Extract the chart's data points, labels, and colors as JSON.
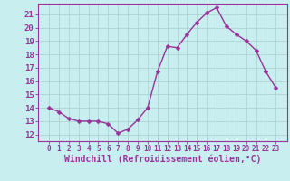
{
  "x": [
    0,
    1,
    2,
    3,
    4,
    5,
    6,
    7,
    8,
    9,
    10,
    11,
    12,
    13,
    14,
    15,
    16,
    17,
    18,
    19,
    20,
    21,
    22,
    23
  ],
  "y": [
    14.0,
    13.7,
    13.2,
    13.0,
    13.0,
    13.0,
    12.8,
    12.1,
    12.4,
    13.1,
    14.0,
    16.7,
    18.6,
    18.5,
    19.5,
    20.4,
    21.1,
    21.5,
    20.1,
    19.5,
    19.0,
    18.3,
    16.7,
    15.5
  ],
  "line_color": "#993399",
  "marker": "D",
  "markersize": 2.5,
  "linewidth": 1.0,
  "bg_color": "#c8eef0",
  "grid_color": "#aacccc",
  "xlabel": "Windchill (Refroidissement éolien,°C)",
  "xlabel_fontsize": 7,
  "tick_fontsize": 6,
  "ylim": [
    11.5,
    21.8
  ],
  "yticks": [
    12,
    13,
    14,
    15,
    16,
    17,
    18,
    19,
    20,
    21
  ],
  "xticks": [
    0,
    1,
    2,
    3,
    4,
    5,
    6,
    7,
    8,
    9,
    10,
    11,
    12,
    13,
    14,
    15,
    16,
    17,
    18,
    19,
    20,
    21,
    22,
    23
  ],
  "spine_color": "#993399"
}
